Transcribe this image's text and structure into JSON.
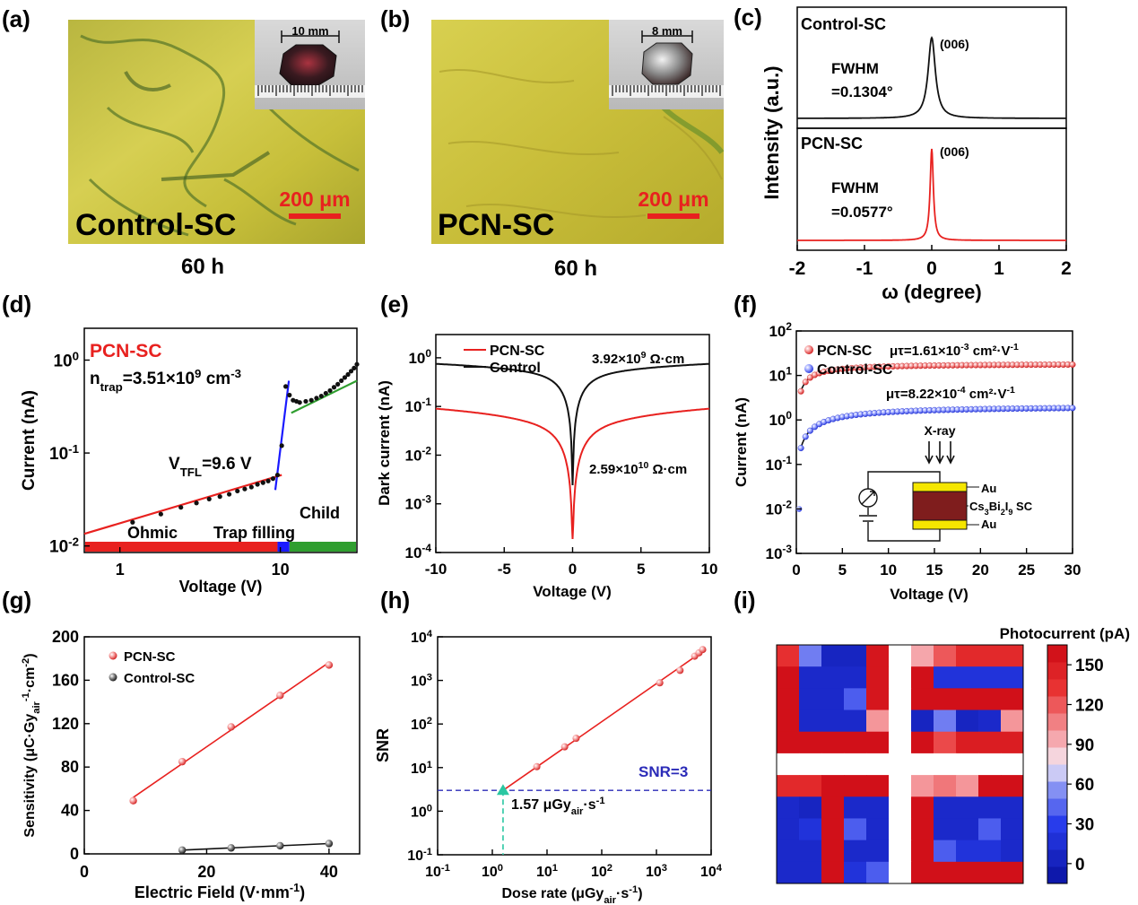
{
  "colors": {
    "red": "#e8211f",
    "black": "#111111",
    "blue_fit": "#1a1aff",
    "green": "#2f9e2f",
    "blue_dots": "#3344ff",
    "dashed_blue": "#2b2bb8",
    "teal": "#2ac7a2",
    "au_yellow": "#f5e600",
    "cs_brown": "#7f1d1d",
    "micro_yellow": "#c9c23a"
  },
  "panel_labels": [
    "(a)",
    "(b)",
    "(c)",
    "(d)",
    "(e)",
    "(f)",
    "(g)",
    "(h)",
    "(i)"
  ],
  "panel_a": {
    "text": "Control-SC",
    "scale": "200 μm",
    "crystal": "10 mm",
    "time": "60 h"
  },
  "panel_b": {
    "text": "PCN-SC",
    "scale": "200 μm",
    "crystal": "8 mm",
    "time": "60 h"
  },
  "chart_data": [
    {
      "id": "c",
      "type": "line",
      "xlabel": "ω (degree)",
      "ylabel": "Intensity (a.u.)",
      "xlim": [
        -2,
        2
      ],
      "xticks": [
        "-2",
        "-1",
        "0",
        "1",
        "2"
      ],
      "series": [
        {
          "name": "Control-SC",
          "peak_label": "(006)",
          "fwhm": "FWHM",
          "fwhm_value": "=0.1304°",
          "center": 0,
          "width": 0.1304
        },
        {
          "name": "PCN-SC",
          "peak_label": "(006)",
          "fwhm": "FWHM",
          "fwhm_value": "=0.0577°",
          "center": 0,
          "width": 0.0577
        }
      ]
    },
    {
      "id": "d",
      "type": "scatter",
      "xlabel": "Voltage (V)",
      "ylabel": "Current (nA)",
      "xscale": "log",
      "yscale": "log",
      "xlim": [
        0.6,
        30
      ],
      "ylim": [
        0.0085,
        2.2
      ],
      "xticks": [
        "1",
        "10"
      ],
      "yticks": [
        "10^-2",
        "10^-1",
        "10^0"
      ],
      "sample": "PCN-SC",
      "ntrap": "n_trap=3.51×10^9 cm^-3",
      "vtfl": "V_TFL=9.6 V",
      "regions": [
        "Ohmic",
        "Trap filling",
        "Child"
      ],
      "x": [
        1.2,
        1.8,
        2.4,
        3.0,
        3.6,
        4.2,
        4.8,
        5.4,
        6.0,
        6.6,
        7.2,
        7.8,
        8.4,
        9.0,
        9.6,
        10.2,
        10.8,
        11.4,
        12.0,
        12.6,
        13.2,
        14.4,
        15.6,
        16.8,
        18.0,
        19.2,
        20.4,
        21.6,
        22.8,
        24.0,
        25.2,
        26.4,
        27.6,
        28.8,
        30.0
      ],
      "y": [
        0.018,
        0.022,
        0.026,
        0.029,
        0.032,
        0.034,
        0.036,
        0.039,
        0.041,
        0.043,
        0.046,
        0.048,
        0.05,
        0.053,
        0.058,
        0.12,
        0.52,
        0.42,
        0.37,
        0.36,
        0.35,
        0.36,
        0.37,
        0.39,
        0.41,
        0.44,
        0.47,
        0.51,
        0.55,
        0.6,
        0.65,
        0.7,
        0.76,
        0.82,
        0.9
      ]
    },
    {
      "id": "e",
      "type": "line",
      "xlabel": "Voltage (V)",
      "ylabel": "Dark current (nA)",
      "yscale": "log",
      "xlim": [
        -10,
        10
      ],
      "ylim": [
        0.0001,
        3
      ],
      "xticks": [
        "-10",
        "-5",
        "0",
        "5",
        "10"
      ],
      "yticks": [
        "10^-4",
        "10^-3",
        "10^-2",
        "10^-1",
        "10^0"
      ],
      "series": [
        {
          "name": "PCN-SC",
          "resistivity": "2.59×10^10 Ω·cm",
          "rho": 25900000000.0
        },
        {
          "name": "Control",
          "resistivity": "3.92×10^9 Ω·cm",
          "rho": 3920000000.0
        }
      ]
    },
    {
      "id": "f",
      "type": "scatter",
      "xlabel": "Voltage (V)",
      "ylabel": "Current (nA)",
      "yscale": "log",
      "xlim": [
        0,
        30
      ],
      "ylim": [
        0.001,
        100
      ],
      "xticks": [
        "0",
        "5",
        "10",
        "15",
        "20",
        "25",
        "30"
      ],
      "yticks": [
        "10^-3",
        "10^-2",
        "10^-1",
        "10^0",
        "10^1",
        "10^2"
      ],
      "series": [
        {
          "name": "PCN-SC",
          "mutau": "μτ=1.61×10^-3 cm²·V^-1",
          "sat": 18.5
        },
        {
          "name": "Control-SC",
          "mutau": "μτ=8.22×10^-4 cm²·V^-1",
          "sat": 2.1
        }
      ],
      "inset": {
        "xray": "X-ray",
        "au_top": "Au",
        "crystal": "Cs3Bi2I9 SC",
        "au_bottom": "Au"
      }
    },
    {
      "id": "g",
      "type": "scatter",
      "xlabel": "Electric Field (V·mm^-1)",
      "ylabel": "Sensitivity (μC·Gy_air^-1·cm^-2)",
      "xlim": [
        0,
        45
      ],
      "ylim": [
        0,
        200
      ],
      "xticks": [
        "0",
        "20",
        "40"
      ],
      "yticks": [
        "0",
        "40",
        "80",
        "120",
        "160",
        "200"
      ],
      "series": [
        {
          "name": "PCN-SC",
          "x": [
            8,
            16,
            24,
            32,
            40
          ],
          "values": [
            49,
            85,
            117,
            146,
            174
          ]
        },
        {
          "name": "Control-SC",
          "x": [
            16,
            24,
            32,
            40
          ],
          "values": [
            3.5,
            5.5,
            7.5,
            9.5
          ]
        }
      ]
    },
    {
      "id": "h",
      "type": "scatter",
      "xlabel": "Dose rate (μGy_air·s^-1)",
      "ylabel": "SNR",
      "xscale": "log",
      "yscale": "log",
      "xlim": [
        0.1,
        10000
      ],
      "ylim": [
        0.1,
        10000
      ],
      "xticks": [
        "10^-1",
        "10^0",
        "10^1",
        "10^2",
        "10^3",
        "10^4"
      ],
      "yticks": [
        "10^-1",
        "10^0",
        "10^1",
        "10^2",
        "10^3",
        "10^4"
      ],
      "x": [
        6.5,
        21,
        34,
        1150,
        2700,
        5000,
        6000,
        7000
      ],
      "y": [
        10.5,
        30,
        47,
        880,
        1700,
        3600,
        4300,
        5100
      ],
      "threshold": 3,
      "threshold_label": "SNR=3",
      "lod": 1.57,
      "lod_label": "1.57 μGy_air·s^-1"
    },
    {
      "id": "i",
      "type": "heatmap",
      "title": "Photocurrent (pA)",
      "colorbar_ticks": [
        "0",
        "30",
        "60",
        "90",
        "120",
        "150"
      ],
      "vmin": -15,
      "vmax": 165,
      "grid": [
        [
          135,
          50,
          5,
          5,
          155,
          null,
          95,
          120,
          140,
          140,
          140
        ],
        [
          160,
          10,
          10,
          10,
          155,
          null,
          160,
          20,
          20,
          20,
          20
        ],
        [
          160,
          10,
          10,
          40,
          155,
          null,
          160,
          160,
          160,
          160,
          160
        ],
        [
          160,
          10,
          10,
          10,
          100,
          null,
          5,
          50,
          5,
          10,
          100
        ],
        [
          160,
          160,
          160,
          160,
          160,
          null,
          160,
          125,
          150,
          150,
          150
        ],
        [
          null,
          null,
          null,
          null,
          null,
          null,
          null,
          null,
          null,
          null,
          null
        ],
        [
          140,
          140,
          160,
          160,
          160,
          null,
          100,
          110,
          100,
          160,
          160
        ],
        [
          10,
          5,
          160,
          10,
          10,
          null,
          160,
          10,
          10,
          10,
          10
        ],
        [
          10,
          20,
          160,
          40,
          10,
          null,
          160,
          10,
          10,
          40,
          10
        ],
        [
          10,
          10,
          160,
          10,
          10,
          null,
          160,
          40,
          20,
          20,
          10
        ],
        [
          10,
          10,
          160,
          20,
          40,
          null,
          160,
          160,
          160,
          160,
          160
        ]
      ]
    }
  ]
}
